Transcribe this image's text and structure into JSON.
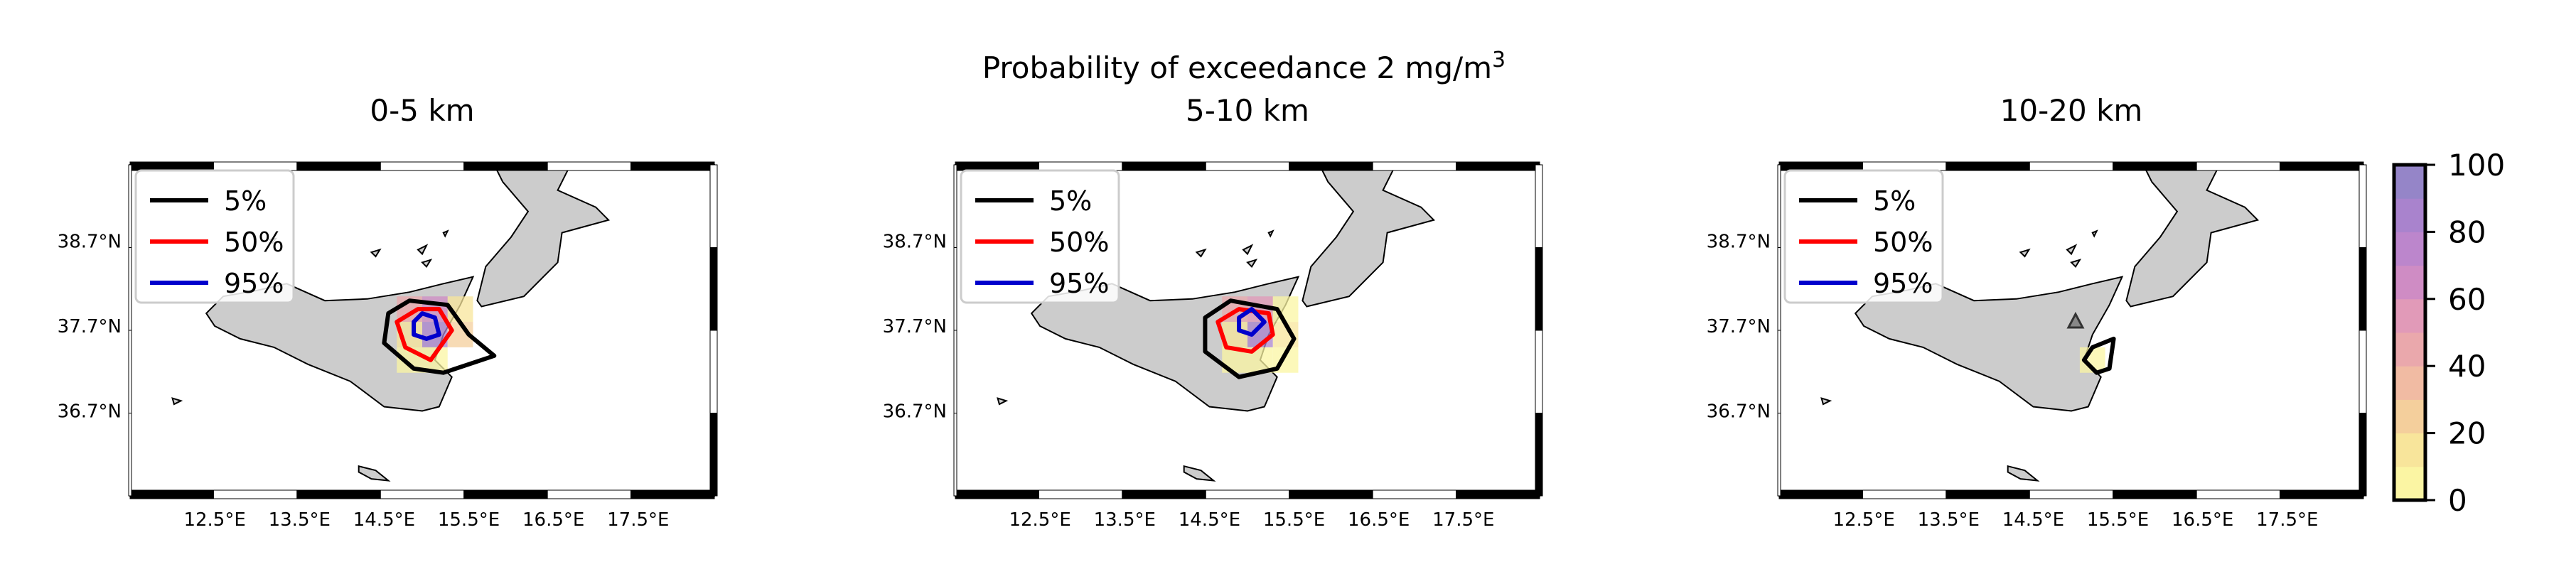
{
  "figure": {
    "suptitle_text": "Probability of exceedance 2 mg/m",
    "suptitle_sup": "3"
  },
  "colorbar": {
    "ticks": [
      "0",
      "20",
      "40",
      "60",
      "80",
      "100"
    ],
    "range": [
      0,
      100
    ],
    "colors": [
      "#fbf5a3",
      "#f8e59b",
      "#f4cf9c",
      "#f1bba3",
      "#eaa8ac",
      "#e19ab8",
      "#cf8cc4",
      "#bc86cc",
      "#a983cd",
      "#9585c8"
    ]
  },
  "chart_data": [
    {
      "type": "heatmap",
      "title": "0-5 km",
      "xticks": [
        "12.5°E",
        "13.5°E",
        "14.5°E",
        "15.5°E",
        "16.5°E",
        "17.5°E"
      ],
      "yticks": [
        "38.7°N",
        "37.7°N",
        "36.7°N"
      ],
      "xlim": [
        11.5,
        18.4
      ],
      "ylim": [
        35.7,
        39.6
      ],
      "legend": {
        "position": "top-left",
        "entries": [
          {
            "label": "5%",
            "color": "#000000"
          },
          {
            "label": "50%",
            "color": "#ff0000"
          },
          {
            "label": "95%",
            "color": "#0000cc"
          }
        ]
      },
      "cells": [
        {
          "lon": 14.8,
          "lat": 37.9,
          "value": 45
        },
        {
          "lon": 15.1,
          "lat": 37.9,
          "value": 60
        },
        {
          "lon": 15.4,
          "lat": 37.9,
          "value": 10
        },
        {
          "lon": 14.8,
          "lat": 37.6,
          "value": 15
        },
        {
          "lon": 15.1,
          "lat": 37.6,
          "value": 85
        },
        {
          "lon": 15.4,
          "lat": 37.6,
          "value": 20
        },
        {
          "lon": 14.8,
          "lat": 37.3,
          "value": 5
        },
        {
          "lon": 15.1,
          "lat": 37.3,
          "value": 5
        }
      ],
      "contours": [
        {
          "level": "5%",
          "color": "#000000",
          "points": [
            [
              14.55,
              37.85
            ],
            [
              14.8,
              38.0
            ],
            [
              15.25,
              37.95
            ],
            [
              15.5,
              37.6
            ],
            [
              15.8,
              37.35
            ],
            [
              15.2,
              37.15
            ],
            [
              14.85,
              37.2
            ],
            [
              14.5,
              37.5
            ]
          ]
        },
        {
          "level": "50%",
          "color": "#ff0000",
          "points": [
            [
              14.65,
              37.75
            ],
            [
              14.9,
              37.9
            ],
            [
              15.15,
              37.9
            ],
            [
              15.3,
              37.65
            ],
            [
              15.05,
              37.3
            ],
            [
              14.75,
              37.45
            ]
          ]
        },
        {
          "level": "95%",
          "color": "#0000cc",
          "points": [
            [
              14.85,
              37.75
            ],
            [
              14.95,
              37.85
            ],
            [
              15.1,
              37.8
            ],
            [
              15.15,
              37.6
            ],
            [
              15.0,
              37.55
            ],
            [
              14.85,
              37.6
            ]
          ]
        }
      ],
      "marker": null
    },
    {
      "type": "heatmap",
      "title": "5-10 km",
      "xticks": [
        "12.5°E",
        "13.5°E",
        "14.5°E",
        "15.5°E",
        "16.5°E",
        "17.5°E"
      ],
      "yticks": [
        "38.7°N",
        "37.7°N",
        "36.7°N"
      ],
      "xlim": [
        11.5,
        18.4
      ],
      "ylim": [
        35.7,
        39.6
      ],
      "legend": {
        "position": "top-left",
        "entries": [
          {
            "label": "5%",
            "color": "#000000"
          },
          {
            "label": "50%",
            "color": "#ff0000"
          },
          {
            "label": "95%",
            "color": "#0000cc"
          }
        ]
      },
      "cells": [
        {
          "lon": 14.8,
          "lat": 37.9,
          "value": 40
        },
        {
          "lon": 15.1,
          "lat": 37.9,
          "value": 55
        },
        {
          "lon": 15.4,
          "lat": 37.9,
          "value": 5
        },
        {
          "lon": 14.8,
          "lat": 37.6,
          "value": 15
        },
        {
          "lon": 15.1,
          "lat": 37.6,
          "value": 80
        },
        {
          "lon": 15.4,
          "lat": 37.6,
          "value": 10
        },
        {
          "lon": 14.8,
          "lat": 37.3,
          "value": 5
        },
        {
          "lon": 15.1,
          "lat": 37.3,
          "value": 5
        },
        {
          "lon": 15.4,
          "lat": 37.3,
          "value": 5
        }
      ],
      "contours": [
        {
          "level": "5%",
          "color": "#000000",
          "points": [
            [
              14.45,
              37.8
            ],
            [
              14.75,
              38.0
            ],
            [
              15.3,
              37.9
            ],
            [
              15.5,
              37.55
            ],
            [
              15.3,
              37.2
            ],
            [
              14.85,
              37.1
            ],
            [
              14.45,
              37.4
            ]
          ]
        },
        {
          "level": "50%",
          "color": "#ff0000",
          "points": [
            [
              14.6,
              37.75
            ],
            [
              14.85,
              37.9
            ],
            [
              15.2,
              37.85
            ],
            [
              15.25,
              37.6
            ],
            [
              15.0,
              37.4
            ],
            [
              14.7,
              37.45
            ]
          ]
        },
        {
          "level": "95%",
          "color": "#0000cc",
          "points": [
            [
              14.85,
              37.8
            ],
            [
              15.0,
              37.9
            ],
            [
              15.15,
              37.75
            ],
            [
              15.0,
              37.6
            ],
            [
              14.85,
              37.65
            ]
          ]
        }
      ],
      "marker": null
    },
    {
      "type": "heatmap",
      "title": "10-20 km",
      "xticks": [
        "12.5°E",
        "13.5°E",
        "14.5°E",
        "15.5°E",
        "16.5°E",
        "17.5°E"
      ],
      "yticks": [
        "38.7°N",
        "37.7°N",
        "36.7°N"
      ],
      "xlim": [
        11.5,
        18.4
      ],
      "ylim": [
        35.7,
        39.6
      ],
      "legend": {
        "position": "top-left",
        "entries": [
          {
            "label": "5%",
            "color": "#000000"
          },
          {
            "label": "50%",
            "color": "#ff0000"
          },
          {
            "label": "95%",
            "color": "#0000cc"
          }
        ]
      },
      "cells": [
        {
          "lon": 15.2,
          "lat": 37.3,
          "value": 5
        }
      ],
      "contours": [
        {
          "level": "5%",
          "color": "#000000",
          "points": [
            [
              15.2,
              37.45
            ],
            [
              15.45,
              37.55
            ],
            [
              15.4,
              37.2
            ],
            [
              15.25,
              37.15
            ],
            [
              15.1,
              37.3
            ]
          ]
        }
      ],
      "marker": {
        "lon": 15.0,
        "lat": 37.75,
        "shape": "triangle"
      }
    }
  ]
}
